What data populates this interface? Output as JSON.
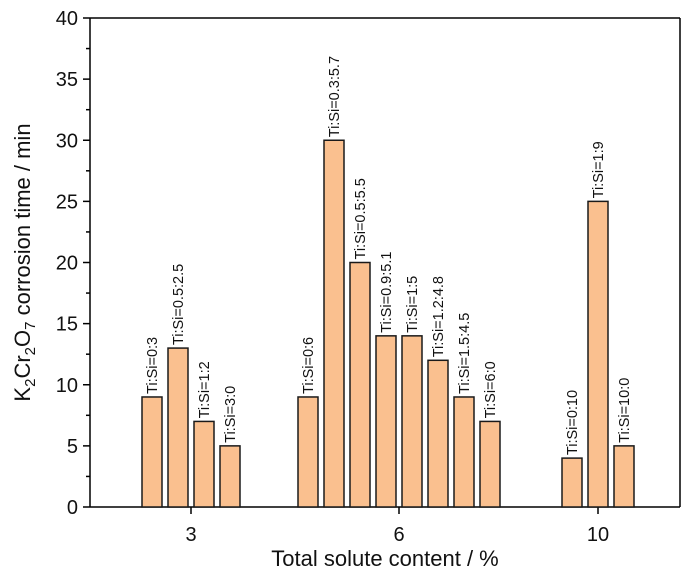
{
  "chart_data": {
    "type": "bar",
    "xlabel": "Total solute content / %",
    "ylabel": "K₂Cr₂O₇ corrosion time / min",
    "ylabel_parts": [
      "K",
      "2",
      "Cr",
      "2",
      "O",
      "7",
      " corrosion time / min"
    ],
    "ylim": [
      0,
      40
    ],
    "yticks": [
      0,
      5,
      10,
      15,
      20,
      25,
      30,
      35,
      40
    ],
    "y_minor_step": 2.5,
    "bar_fill": "#FAC08F",
    "bar_stroke": "#1a1a1a",
    "groups": [
      {
        "category": "3",
        "bars": [
          {
            "label": "Ti:Si=0:3",
            "value": 9
          },
          {
            "label": "Ti:Si=0.5:2.5",
            "value": 13
          },
          {
            "label": "Ti:Si=1:2",
            "value": 7
          },
          {
            "label": "Ti:Si=3:0",
            "value": 5
          }
        ]
      },
      {
        "category": "6",
        "bars": [
          {
            "label": "Ti:Si=0:6",
            "value": 9
          },
          {
            "label": "Ti:Si=0.3:5.7",
            "value": 30
          },
          {
            "label": "Ti:Si=0.5:5.5",
            "value": 20
          },
          {
            "label": "Ti:Si=0.9:5.1",
            "value": 14
          },
          {
            "label": "Ti:Si=1:5",
            "value": 14
          },
          {
            "label": "Ti:Si=1.2:4.8",
            "value": 12
          },
          {
            "label": "Ti:Si=1.5:4.5",
            "value": 9
          },
          {
            "label": "Ti:Si=6:0",
            "value": 7
          }
        ]
      },
      {
        "category": "10",
        "bars": [
          {
            "label": "Ti:Si=0:10",
            "value": 4
          },
          {
            "label": "Ti:Si=1:9",
            "value": 25
          },
          {
            "label": "Ti:Si=10:0",
            "value": 5
          }
        ]
      }
    ]
  }
}
